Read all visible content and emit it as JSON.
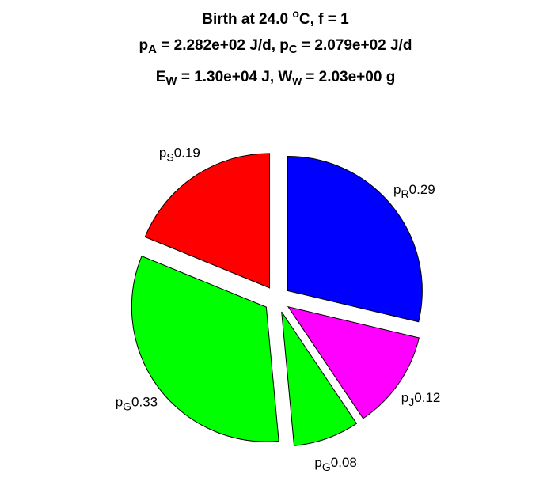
{
  "chart_data": {
    "type": "pie",
    "title": [
      [
        {
          "text": "Birth at 24.0 "
        },
        {
          "text": "o",
          "script": "super"
        },
        {
          "text": "C, f = 1"
        }
      ],
      [
        {
          "text": "p"
        },
        {
          "text": "A",
          "script": "sub"
        },
        {
          "text": " = 2.282e+02 J/d, p"
        },
        {
          "text": "C",
          "script": "sub"
        },
        {
          "text": " = 2.079e+02 J/d"
        }
      ],
      [
        {
          "text": "E"
        },
        {
          "text": "W",
          "script": "sub"
        },
        {
          "text": " = 1.30e+04 J, W"
        },
        {
          "text": "w",
          "script": "sub"
        },
        {
          "text": " = 2.03e+00 g"
        }
      ]
    ],
    "labels": [
      {
        "base": "p",
        "sub": "R"
      },
      {
        "base": "p",
        "sub": "J"
      },
      {
        "base": "p",
        "sub": "G"
      },
      {
        "base": "p",
        "sub": "G"
      },
      {
        "base": "p",
        "sub": "S"
      }
    ],
    "values": [
      0.29,
      0.12,
      0.08,
      0.33,
      0.19
    ],
    "colors": [
      "#0000ff",
      "#ff00ff",
      "#00ff00",
      "#00ff00",
      "#ff0000"
    ],
    "exploded": true
  }
}
